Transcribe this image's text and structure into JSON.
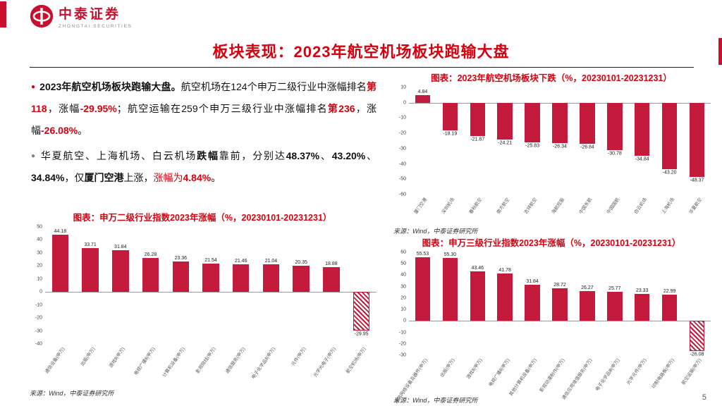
{
  "brand": {
    "name": "中泰证券",
    "name_en": "ZHONGTAI SECURITIES"
  },
  "page": {
    "title": "板块表现：2023年航空机场板块跑输大盘",
    "page_number": "5"
  },
  "colors": {
    "brand_red": "#c8102e",
    "title_red": "#d7000f",
    "bar_red": "#c41a3b",
    "bullet_gray": "#7f7f7f"
  },
  "left_panel": {
    "bullets": [
      {
        "marker": "●",
        "segments": [
          {
            "style": "b",
            "text": "2023年航空机场板块跑输大盘。"
          },
          {
            "style": "n",
            "text": "航空机场在124个申万二级行业中涨幅排名"
          },
          {
            "style": "rb",
            "text": "第118"
          },
          {
            "style": "n",
            "text": "，涨幅"
          },
          {
            "style": "rb",
            "text": "-29.95%"
          },
          {
            "style": "n",
            "text": "；航空运输在259个申万三级行业中涨幅排名"
          },
          {
            "style": "rb",
            "text": "第236"
          },
          {
            "style": "n",
            "text": "，涨幅"
          },
          {
            "style": "rb",
            "text": "-26.08%"
          },
          {
            "style": "n",
            "text": "。"
          }
        ]
      },
      {
        "marker": "●",
        "segments": [
          {
            "style": "n",
            "text": "华夏航空、上海机场、白云机场"
          },
          {
            "style": "b",
            "text": "跌幅"
          },
          {
            "style": "n",
            "text": "靠前，分别达"
          },
          {
            "style": "b",
            "text": "48.37%"
          },
          {
            "style": "n",
            "text": "、"
          },
          {
            "style": "b",
            "text": "43.20%"
          },
          {
            "style": "n",
            "text": "、"
          },
          {
            "style": "b",
            "text": "34.84%"
          },
          {
            "style": "n",
            "text": "，仅"
          },
          {
            "style": "b",
            "text": "厦门空港"
          },
          {
            "style": "n",
            "text": "上涨，"
          },
          {
            "style": "r",
            "text": "涨幅为"
          },
          {
            "style": "rb",
            "text": "4.84%"
          },
          {
            "style": "n",
            "text": "。"
          }
        ]
      }
    ]
  },
  "chart_data": [
    {
      "type": "bar",
      "title": "图表：申万二级行业指数2023年涨幅（%，20230101-20231231）",
      "source": "来源：Wind，中泰证券研究所",
      "ylim": [
        -40,
        50
      ],
      "ytick": 10,
      "bar_color": "#c41a3b",
      "points": [
        {
          "label": "通信设备(申万)",
          "value": 44.18
        },
        {
          "label": "出版(申万)",
          "value": 33.71
        },
        {
          "label": "游戏Ⅱ(申万)",
          "value": 31.84
        },
        {
          "label": "电视广播Ⅱ(申万)",
          "value": 26.28
        },
        {
          "label": "计算机设备(申万)",
          "value": 23.36
        },
        {
          "label": "影视院线(申万)",
          "value": 21.54
        },
        {
          "label": "通信服务(申万)",
          "value": 21.46
        },
        {
          "label": "电子化学品Ⅱ(申万)",
          "value": 21.04
        },
        {
          "label": "元件(申万)",
          "value": 20.35
        },
        {
          "label": "光学光电子(申万)",
          "value": 18.88
        },
        {
          "label": "航空机场(申万)",
          "value": -29.95,
          "hatched": true
        }
      ]
    },
    {
      "type": "bar",
      "title": "图表：2023年航空机场板块下跌（%，20230101-20231231）",
      "source": "来源：Wind，中泰证券研究所",
      "ylim": [
        -60,
        10
      ],
      "ytick": 10,
      "bar_color": "#c41a3b",
      "points": [
        {
          "label": "厦门空港",
          "value": 4.84
        },
        {
          "label": "深圳机场",
          "value": -18.19
        },
        {
          "label": "春秋航空",
          "value": -21.87
        },
        {
          "label": "南方航空",
          "value": -24.21
        },
        {
          "label": "吉祥航空",
          "value": -25.83
        },
        {
          "label": "海航控股",
          "value": -26.34
        },
        {
          "label": "中国东航",
          "value": -26.84
        },
        {
          "label": "中国国航",
          "value": -30.78
        },
        {
          "label": "白云机场",
          "value": -34.84
        },
        {
          "label": "上海机场",
          "value": -43.2
        },
        {
          "label": "华夏航空",
          "value": -48.37
        }
      ]
    },
    {
      "type": "bar",
      "title": "图表：申万三级行业指数2023年涨幅（%，20230101-20231231）",
      "source": "来源：Wind，中泰证券研究所",
      "ylim": [
        -30,
        60
      ],
      "ytick": 10,
      "bar_color": "#c41a3b",
      "points": [
        {
          "label": "通信网络设备及器件(申万)",
          "value": 55.53
        },
        {
          "label": "出版(申万)",
          "value": 55.3
        },
        {
          "label": "游戏Ⅱ(申万)",
          "value": 43.46
        },
        {
          "label": "电视广播Ⅱ(申万)",
          "value": 41.78
        },
        {
          "label": "其他计算机设备(申万)",
          "value": 31.84
        },
        {
          "label": "影视动漫制作(申万)",
          "value": 28.72
        },
        {
          "label": "通信应用增值服务(申万)",
          "value": 26.27
        },
        {
          "label": "电子化学品Ⅲ(申万)",
          "value": 25.77
        },
        {
          "label": "光学元件(申万)",
          "value": 23.33
        },
        {
          "label": "印制电路板(申万)",
          "value": 22.99
        },
        {
          "label": "航空运输(申万)",
          "value": -26.08,
          "hatched": true
        }
      ]
    }
  ]
}
